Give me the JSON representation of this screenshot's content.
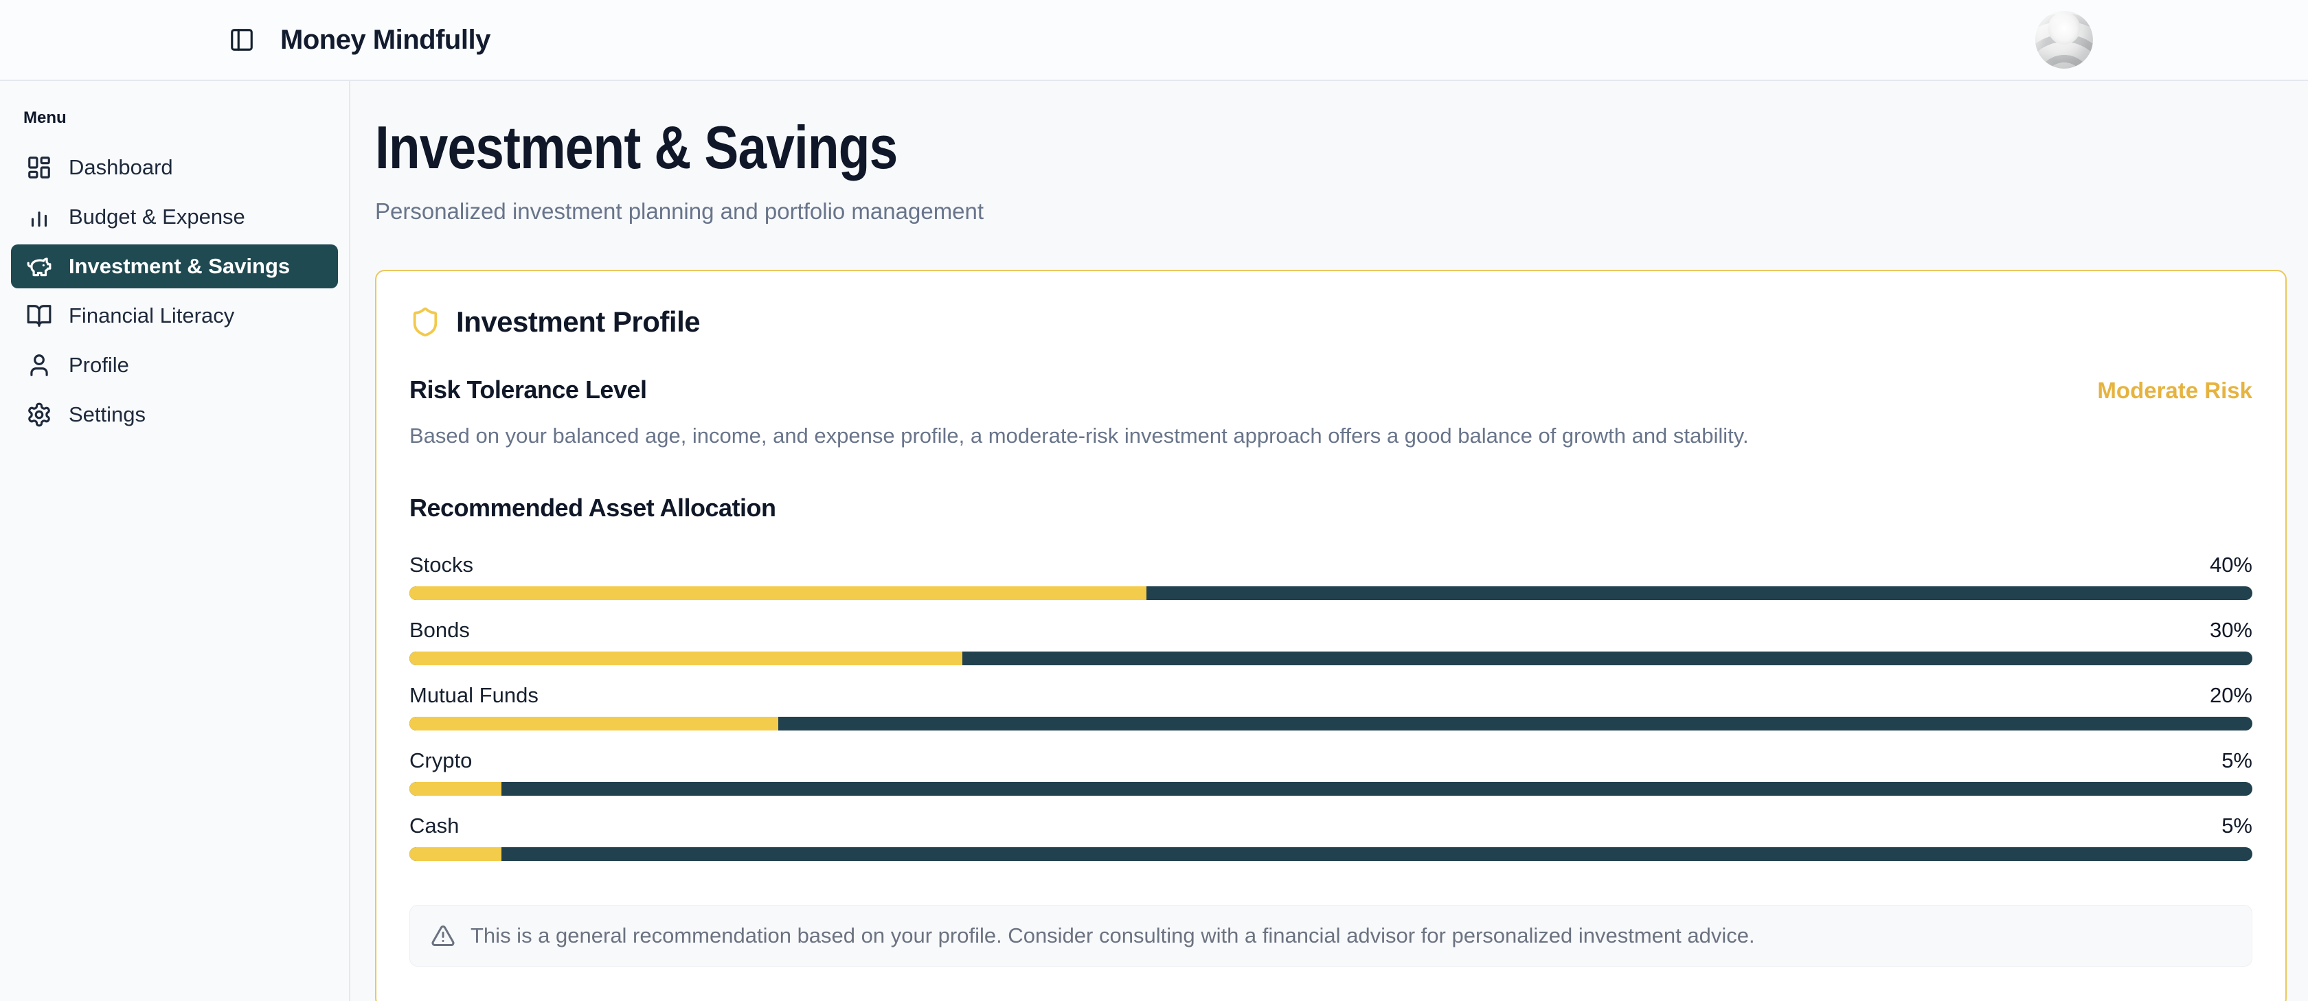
{
  "header": {
    "app_title": "Money Mindfully"
  },
  "sidebar": {
    "menu_label": "Menu",
    "items": [
      {
        "label": "Dashboard",
        "icon": "layout-dashboard-icon",
        "active": false
      },
      {
        "label": "Budget & Expense",
        "icon": "bar-chart-icon",
        "active": false
      },
      {
        "label": "Investment & Savings",
        "icon": "piggy-bank-icon",
        "active": true
      },
      {
        "label": "Financial Literacy",
        "icon": "book-open-icon",
        "active": false
      },
      {
        "label": "Profile",
        "icon": "user-icon",
        "active": false
      },
      {
        "label": "Settings",
        "icon": "gear-icon",
        "active": false
      }
    ]
  },
  "page": {
    "title": "Investment & Savings",
    "subtitle": "Personalized investment planning and portfolio management"
  },
  "card": {
    "title": "Investment Profile",
    "icon": "shield-icon",
    "risk_heading": "Risk Tolerance Level",
    "risk_level": "Moderate Risk",
    "risk_description": "Based on your balanced age, income, and expense profile, a moderate-risk investment approach offers a good balance of growth and stability.",
    "allocation_heading": "Recommended Asset Allocation",
    "allocation": [
      {
        "label": "Stocks",
        "value": 40,
        "display": "40%"
      },
      {
        "label": "Bonds",
        "value": 30,
        "display": "30%"
      },
      {
        "label": "Mutual Funds",
        "value": 20,
        "display": "20%"
      },
      {
        "label": "Crypto",
        "value": 5,
        "display": "5%"
      },
      {
        "label": "Cash",
        "value": 5,
        "display": "5%"
      }
    ],
    "disclaimer": "This is a general recommendation based on your profile. Consider consulting with a financial advisor for personalized investment advice."
  },
  "chart_data": {
    "type": "bar",
    "title": "Recommended Asset Allocation",
    "categories": [
      "Stocks",
      "Bonds",
      "Mutual Funds",
      "Crypto",
      "Cash"
    ],
    "values": [
      40,
      30,
      20,
      5,
      5
    ],
    "unit": "%",
    "xlim": [
      0,
      100
    ],
    "orientation": "horizontal"
  },
  "colors": {
    "accent_gold": "#f2c94c",
    "bar_fill": "#f4cc4b",
    "bar_track": "#21414e",
    "sidebar_active_bg": "#1f4a52",
    "risk_badge": "#e6b33f",
    "card_border": "#ebc85e"
  }
}
